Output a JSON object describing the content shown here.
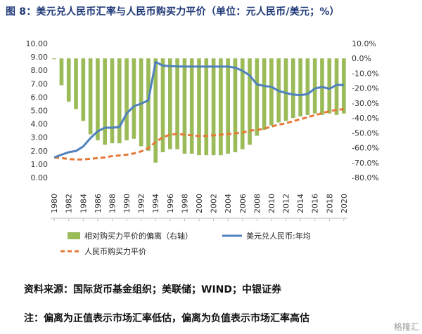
{
  "figure_title": "图 8：美元兑人民币汇率与人民币购买力平价（单位：元人民币/美元；%）",
  "source_text": "资料来源：国际货币基金组织；美联储；WIND；中银证券",
  "note_text": "注：偏离为正值表示市场汇率低估，偏离为负值表示市场汇率高估",
  "watermark_text": "格隆汇",
  "colors": {
    "bars": "#9bbb59",
    "exchange_line": "#4f81bd",
    "ppp_line": "#e57a38",
    "title": "#1f3a78"
  },
  "chart_data": {
    "type": "bar+line",
    "title": "",
    "xlabel": "",
    "ylabel_left": "",
    "ylabel_right": "",
    "left_axis": {
      "min": 0,
      "max": 10,
      "step": 1,
      "ticks": [
        "0.00",
        "1.00",
        "2.00",
        "3.00",
        "4.00",
        "5.00",
        "6.00",
        "7.00",
        "8.00",
        "9.00",
        "10.00"
      ]
    },
    "right_axis": {
      "min": -80,
      "max": 10,
      "step": 10,
      "ticks": [
        "-80.0%",
        "-70.0%",
        "-60.0%",
        "-50.0%",
        "-40.0%",
        "-30.0%",
        "-20.0%",
        "-10.0%",
        "0.0%",
        "10.0%"
      ]
    },
    "x": [
      1980,
      1981,
      1982,
      1983,
      1984,
      1985,
      1986,
      1987,
      1988,
      1989,
      1990,
      1991,
      1992,
      1993,
      1994,
      1995,
      1996,
      1997,
      1998,
      1999,
      2000,
      2001,
      2002,
      2003,
      2004,
      2005,
      2006,
      2007,
      2008,
      2009,
      2010,
      2011,
      2012,
      2013,
      2014,
      2015,
      2016,
      2017,
      2018,
      2019,
      2020
    ],
    "x_tick_labels": [
      "1980",
      "1982",
      "1984",
      "1986",
      "1988",
      "1990",
      "1992",
      "1994",
      "1996",
      "1998",
      "2000",
      "2002",
      "2004",
      "2006",
      "2008",
      "2010",
      "2012",
      "2014",
      "2016",
      "2018",
      "2020"
    ],
    "grid": false,
    "legend_position": "bottom",
    "series": [
      {
        "name": "相对购买力平价的偏离（右轴）",
        "type": "bar",
        "axis": "right",
        "values": [
          -0.5,
          -18,
          -29,
          -34,
          -42,
          -51,
          -55,
          -58,
          -57,
          -57,
          -55,
          -54,
          -59,
          -62,
          -70,
          -63,
          -61,
          -61,
          -64,
          -64,
          -65,
          -65,
          -65,
          -65,
          -64,
          -63,
          -61,
          -58,
          -52,
          -48,
          -45,
          -43,
          -42,
          -40,
          -39,
          -38,
          -37,
          -38,
          -37,
          -38,
          -37
        ]
      },
      {
        "name": "美元兑人民币:年均",
        "type": "line",
        "axis": "left",
        "values": [
          1.5,
          1.7,
          1.89,
          1.98,
          2.32,
          2.94,
          3.45,
          3.72,
          3.72,
          3.77,
          4.78,
          5.32,
          5.51,
          5.76,
          8.62,
          8.35,
          8.31,
          8.29,
          8.28,
          8.28,
          8.28,
          8.28,
          8.28,
          8.28,
          8.28,
          8.19,
          7.97,
          7.61,
          6.95,
          6.83,
          6.77,
          6.46,
          6.31,
          6.19,
          6.14,
          6.23,
          6.64,
          6.76,
          6.62,
          6.91,
          6.9
        ]
      },
      {
        "name": "人民币购买力平价",
        "type": "line",
        "style": "dashed",
        "axis": "left",
        "values": [
          1.5,
          1.45,
          1.38,
          1.35,
          1.35,
          1.4,
          1.45,
          1.5,
          1.6,
          1.65,
          1.7,
          1.8,
          1.95,
          2.2,
          2.65,
          3.0,
          3.2,
          3.25,
          3.2,
          3.15,
          3.1,
          3.1,
          3.15,
          3.2,
          3.25,
          3.3,
          3.35,
          3.5,
          3.55,
          3.65,
          3.8,
          3.95,
          4.05,
          4.2,
          4.35,
          4.5,
          4.65,
          4.8,
          4.95,
          5.05,
          5.1
        ]
      }
    ]
  }
}
